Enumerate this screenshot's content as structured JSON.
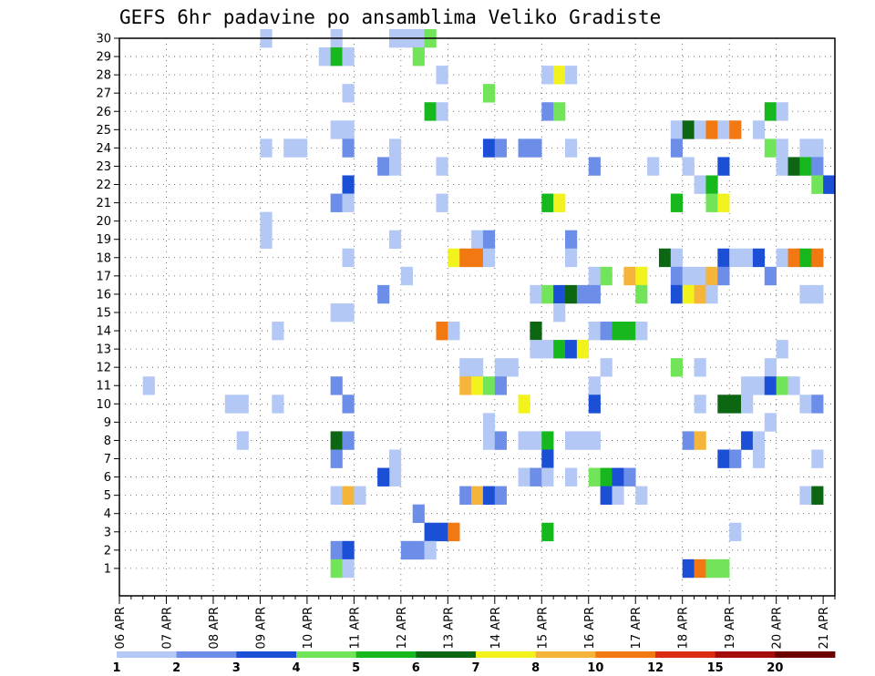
{
  "chart_data": {
    "type": "heatmap",
    "title": "GEFS 6hr padavine po ansamblima Veliko Gradiste",
    "xlabel": "",
    "ylabel": "",
    "x_tick_labels": [
      "06 APR",
      "07 APR",
      "08 APR",
      "09 APR",
      "10 APR",
      "11 APR",
      "12 APR",
      "13 APR",
      "14 APR",
      "15 APR",
      "16 APR",
      "17 APR",
      "18 APR",
      "19 APR",
      "20 APR",
      "21 APR"
    ],
    "x_steps": 61,
    "x_steps_per_day": 4,
    "y_tick_labels": [
      "1",
      "2",
      "3",
      "4",
      "5",
      "6",
      "7",
      "8",
      "9",
      "10",
      "11",
      "12",
      "13",
      "14",
      "15",
      "16",
      "17",
      "18",
      "19",
      "20",
      "21",
      "22",
      "23",
      "24",
      "25",
      "26",
      "27",
      "28",
      "29",
      "30"
    ],
    "ylim": [
      0,
      30
    ],
    "grid": true,
    "legend_position": "bottom",
    "legend_labels": [
      "1",
      "2",
      "3",
      "4",
      "5",
      "6",
      "7",
      "8",
      "10",
      "12",
      "15",
      "20"
    ],
    "legend_colors": [
      "#b4c8f5",
      "#6c8ee8",
      "#1a4fd6",
      "#72e45a",
      "#16b81e",
      "#0c6612",
      "#f2f21c",
      "#f5b43a",
      "#f27812",
      "#dc2c10",
      "#a50c0c",
      "#6c0000"
    ],
    "cells": [
      {
        "x": 12,
        "y": 30,
        "v": 1
      },
      {
        "x": 18,
        "y": 30,
        "v": 1
      },
      {
        "x": 23,
        "y": 30,
        "v": 1
      },
      {
        "x": 24,
        "y": 30,
        "v": 1
      },
      {
        "x": 25,
        "y": 30,
        "v": 1
      },
      {
        "x": 26,
        "y": 30,
        "v": 4
      },
      {
        "x": 17,
        "y": 29,
        "v": 1
      },
      {
        "x": 18,
        "y": 29,
        "v": 5
      },
      {
        "x": 19,
        "y": 29,
        "v": 1
      },
      {
        "x": 25,
        "y": 29,
        "v": 4
      },
      {
        "x": 27,
        "y": 28,
        "v": 1
      },
      {
        "x": 36,
        "y": 28,
        "v": 1
      },
      {
        "x": 37,
        "y": 28,
        "v": 7
      },
      {
        "x": 38,
        "y": 28,
        "v": 1
      },
      {
        "x": 19,
        "y": 27,
        "v": 1
      },
      {
        "x": 31,
        "y": 27,
        "v": 4
      },
      {
        "x": 26,
        "y": 26,
        "v": 5
      },
      {
        "x": 27,
        "y": 26,
        "v": 1
      },
      {
        "x": 36,
        "y": 26,
        "v": 2
      },
      {
        "x": 37,
        "y": 26,
        "v": 4
      },
      {
        "x": 55,
        "y": 26,
        "v": 5
      },
      {
        "x": 56,
        "y": 26,
        "v": 1
      },
      {
        "x": 18,
        "y": 25,
        "v": 1
      },
      {
        "x": 19,
        "y": 25,
        "v": 1
      },
      {
        "x": 47,
        "y": 25,
        "v": 1
      },
      {
        "x": 48,
        "y": 25,
        "v": 6
      },
      {
        "x": 49,
        "y": 25,
        "v": 1
      },
      {
        "x": 50,
        "y": 25,
        "v": 11
      },
      {
        "x": 51,
        "y": 25,
        "v": 1
      },
      {
        "x": 52,
        "y": 25,
        "v": 11
      },
      {
        "x": 54,
        "y": 25,
        "v": 1
      },
      {
        "x": 12,
        "y": 24,
        "v": 1
      },
      {
        "x": 14,
        "y": 24,
        "v": 1
      },
      {
        "x": 15,
        "y": 24,
        "v": 1
      },
      {
        "x": 19,
        "y": 24,
        "v": 2
      },
      {
        "x": 23,
        "y": 24,
        "v": 1
      },
      {
        "x": 31,
        "y": 24,
        "v": 3
      },
      {
        "x": 32,
        "y": 24,
        "v": 2
      },
      {
        "x": 34,
        "y": 24,
        "v": 2
      },
      {
        "x": 35,
        "y": 24,
        "v": 2
      },
      {
        "x": 38,
        "y": 24,
        "v": 1
      },
      {
        "x": 47,
        "y": 24,
        "v": 2
      },
      {
        "x": 55,
        "y": 24,
        "v": 4
      },
      {
        "x": 56,
        "y": 24,
        "v": 1
      },
      {
        "x": 58,
        "y": 24,
        "v": 1
      },
      {
        "x": 59,
        "y": 24,
        "v": 1
      },
      {
        "x": 22,
        "y": 23,
        "v": 2
      },
      {
        "x": 23,
        "y": 23,
        "v": 1
      },
      {
        "x": 27,
        "y": 23,
        "v": 1
      },
      {
        "x": 40,
        "y": 23,
        "v": 2
      },
      {
        "x": 45,
        "y": 23,
        "v": 1
      },
      {
        "x": 48,
        "y": 23,
        "v": 1
      },
      {
        "x": 51,
        "y": 23,
        "v": 3
      },
      {
        "x": 56,
        "y": 23,
        "v": 1
      },
      {
        "x": 57,
        "y": 23,
        "v": 6
      },
      {
        "x": 58,
        "y": 23,
        "v": 5
      },
      {
        "x": 59,
        "y": 23,
        "v": 2
      },
      {
        "x": 19,
        "y": 22,
        "v": 3
      },
      {
        "x": 49,
        "y": 22,
        "v": 1
      },
      {
        "x": 50,
        "y": 22,
        "v": 5
      },
      {
        "x": 59,
        "y": 22,
        "v": 4
      },
      {
        "x": 60,
        "y": 22,
        "v": 3
      },
      {
        "x": 18,
        "y": 21,
        "v": 2
      },
      {
        "x": 19,
        "y": 21,
        "v": 1
      },
      {
        "x": 27,
        "y": 21,
        "v": 1
      },
      {
        "x": 36,
        "y": 21,
        "v": 5
      },
      {
        "x": 37,
        "y": 21,
        "v": 7
      },
      {
        "x": 47,
        "y": 21,
        "v": 5
      },
      {
        "x": 50,
        "y": 21,
        "v": 4
      },
      {
        "x": 51,
        "y": 21,
        "v": 7
      },
      {
        "x": 12,
        "y": 20,
        "v": 1
      },
      {
        "x": 12,
        "y": 19,
        "v": 1
      },
      {
        "x": 23,
        "y": 19,
        "v": 1
      },
      {
        "x": 30,
        "y": 19,
        "v": 1
      },
      {
        "x": 31,
        "y": 19,
        "v": 2
      },
      {
        "x": 38,
        "y": 19,
        "v": 2
      },
      {
        "x": 19,
        "y": 18,
        "v": 1
      },
      {
        "x": 28,
        "y": 18,
        "v": 7
      },
      {
        "x": 29,
        "y": 18,
        "v": 10
      },
      {
        "x": 30,
        "y": 18,
        "v": 10
      },
      {
        "x": 31,
        "y": 18,
        "v": 1
      },
      {
        "x": 38,
        "y": 18,
        "v": 1
      },
      {
        "x": 46,
        "y": 18,
        "v": 6
      },
      {
        "x": 47,
        "y": 18,
        "v": 1
      },
      {
        "x": 51,
        "y": 18,
        "v": 3
      },
      {
        "x": 52,
        "y": 18,
        "v": 1
      },
      {
        "x": 53,
        "y": 18,
        "v": 1
      },
      {
        "x": 54,
        "y": 18,
        "v": 3
      },
      {
        "x": 56,
        "y": 18,
        "v": 1
      },
      {
        "x": 57,
        "y": 18,
        "v": 11
      },
      {
        "x": 58,
        "y": 18,
        "v": 5
      },
      {
        "x": 59,
        "y": 18,
        "v": 10
      },
      {
        "x": 24,
        "y": 17,
        "v": 1
      },
      {
        "x": 40,
        "y": 17,
        "v": 1
      },
      {
        "x": 41,
        "y": 17,
        "v": 4
      },
      {
        "x": 43,
        "y": 17,
        "v": 8
      },
      {
        "x": 44,
        "y": 17,
        "v": 7
      },
      {
        "x": 47,
        "y": 17,
        "v": 2
      },
      {
        "x": 48,
        "y": 17,
        "v": 1
      },
      {
        "x": 49,
        "y": 17,
        "v": 1
      },
      {
        "x": 50,
        "y": 17,
        "v": 8
      },
      {
        "x": 51,
        "y": 17,
        "v": 2
      },
      {
        "x": 55,
        "y": 17,
        "v": 2
      },
      {
        "x": 22,
        "y": 16,
        "v": 2
      },
      {
        "x": 35,
        "y": 16,
        "v": 1
      },
      {
        "x": 36,
        "y": 16,
        "v": 4
      },
      {
        "x": 37,
        "y": 16,
        "v": 3
      },
      {
        "x": 38,
        "y": 16,
        "v": 6
      },
      {
        "x": 39,
        "y": 16,
        "v": 2
      },
      {
        "x": 40,
        "y": 16,
        "v": 2
      },
      {
        "x": 44,
        "y": 16,
        "v": 4
      },
      {
        "x": 47,
        "y": 16,
        "v": 3
      },
      {
        "x": 48,
        "y": 16,
        "v": 7
      },
      {
        "x": 49,
        "y": 16,
        "v": 8
      },
      {
        "x": 50,
        "y": 16,
        "v": 1
      },
      {
        "x": 58,
        "y": 16,
        "v": 1
      },
      {
        "x": 59,
        "y": 16,
        "v": 1
      },
      {
        "x": 18,
        "y": 15,
        "v": 1
      },
      {
        "x": 19,
        "y": 15,
        "v": 1
      },
      {
        "x": 37,
        "y": 15,
        "v": 1
      },
      {
        "x": 13,
        "y": 14,
        "v": 1
      },
      {
        "x": 27,
        "y": 14,
        "v": 10
      },
      {
        "x": 28,
        "y": 14,
        "v": 1
      },
      {
        "x": 35,
        "y": 14,
        "v": 6
      },
      {
        "x": 40,
        "y": 14,
        "v": 1
      },
      {
        "x": 41,
        "y": 14,
        "v": 2
      },
      {
        "x": 42,
        "y": 14,
        "v": 5
      },
      {
        "x": 43,
        "y": 14,
        "v": 5
      },
      {
        "x": 44,
        "y": 14,
        "v": 1
      },
      {
        "x": 35,
        "y": 13,
        "v": 1
      },
      {
        "x": 36,
        "y": 13,
        "v": 1
      },
      {
        "x": 37,
        "y": 13,
        "v": 5
      },
      {
        "x": 38,
        "y": 13,
        "v": 3
      },
      {
        "x": 39,
        "y": 13,
        "v": 7
      },
      {
        "x": 56,
        "y": 13,
        "v": 1
      },
      {
        "x": 29,
        "y": 12,
        "v": 1
      },
      {
        "x": 30,
        "y": 12,
        "v": 1
      },
      {
        "x": 32,
        "y": 12,
        "v": 1
      },
      {
        "x": 33,
        "y": 12,
        "v": 1
      },
      {
        "x": 41,
        "y": 12,
        "v": 1
      },
      {
        "x": 47,
        "y": 12,
        "v": 4
      },
      {
        "x": 49,
        "y": 12,
        "v": 1
      },
      {
        "x": 55,
        "y": 12,
        "v": 1
      },
      {
        "x": 2,
        "y": 11,
        "v": 1
      },
      {
        "x": 18,
        "y": 11,
        "v": 2
      },
      {
        "x": 29,
        "y": 11,
        "v": 8
      },
      {
        "x": 30,
        "y": 11,
        "v": 7
      },
      {
        "x": 31,
        "y": 11,
        "v": 4
      },
      {
        "x": 32,
        "y": 11,
        "v": 2
      },
      {
        "x": 40,
        "y": 11,
        "v": 1
      },
      {
        "x": 53,
        "y": 11,
        "v": 1
      },
      {
        "x": 54,
        "y": 11,
        "v": 1
      },
      {
        "x": 55,
        "y": 11,
        "v": 3
      },
      {
        "x": 56,
        "y": 11,
        "v": 4
      },
      {
        "x": 57,
        "y": 11,
        "v": 1
      },
      {
        "x": 9,
        "y": 10,
        "v": 1
      },
      {
        "x": 10,
        "y": 10,
        "v": 1
      },
      {
        "x": 13,
        "y": 10,
        "v": 1
      },
      {
        "x": 19,
        "y": 10,
        "v": 2
      },
      {
        "x": 34,
        "y": 10,
        "v": 7
      },
      {
        "x": 40,
        "y": 10,
        "v": 3
      },
      {
        "x": 49,
        "y": 10,
        "v": 1
      },
      {
        "x": 51,
        "y": 10,
        "v": 6
      },
      {
        "x": 52,
        "y": 10,
        "v": 6
      },
      {
        "x": 53,
        "y": 10,
        "v": 1
      },
      {
        "x": 58,
        "y": 10,
        "v": 1
      },
      {
        "x": 59,
        "y": 10,
        "v": 2
      },
      {
        "x": 31,
        "y": 9,
        "v": 1
      },
      {
        "x": 55,
        "y": 9,
        "v": 1
      },
      {
        "x": 10,
        "y": 8,
        "v": 1
      },
      {
        "x": 18,
        "y": 8,
        "v": 6
      },
      {
        "x": 19,
        "y": 8,
        "v": 2
      },
      {
        "x": 31,
        "y": 8,
        "v": 1
      },
      {
        "x": 32,
        "y": 8,
        "v": 2
      },
      {
        "x": 34,
        "y": 8,
        "v": 1
      },
      {
        "x": 35,
        "y": 8,
        "v": 1
      },
      {
        "x": 36,
        "y": 8,
        "v": 5
      },
      {
        "x": 38,
        "y": 8,
        "v": 1
      },
      {
        "x": 39,
        "y": 8,
        "v": 1
      },
      {
        "x": 40,
        "y": 8,
        "v": 1
      },
      {
        "x": 48,
        "y": 8,
        "v": 2
      },
      {
        "x": 49,
        "y": 8,
        "v": 9
      },
      {
        "x": 53,
        "y": 8,
        "v": 3
      },
      {
        "x": 54,
        "y": 8,
        "v": 1
      },
      {
        "x": 18,
        "y": 7,
        "v": 2
      },
      {
        "x": 23,
        "y": 7,
        "v": 1
      },
      {
        "x": 36,
        "y": 7,
        "v": 3
      },
      {
        "x": 51,
        "y": 7,
        "v": 3
      },
      {
        "x": 52,
        "y": 7,
        "v": 2
      },
      {
        "x": 54,
        "y": 7,
        "v": 1
      },
      {
        "x": 59,
        "y": 7,
        "v": 1
      },
      {
        "x": 23,
        "y": 6,
        "v": 1
      },
      {
        "x": 22,
        "y": 6,
        "v": 3
      },
      {
        "x": 34,
        "y": 6,
        "v": 1
      },
      {
        "x": 35,
        "y": 6,
        "v": 2
      },
      {
        "x": 36,
        "y": 6,
        "v": 1
      },
      {
        "x": 38,
        "y": 6,
        "v": 1
      },
      {
        "x": 40,
        "y": 6,
        "v": 4
      },
      {
        "x": 41,
        "y": 6,
        "v": 5
      },
      {
        "x": 42,
        "y": 6,
        "v": 3
      },
      {
        "x": 43,
        "y": 6,
        "v": 2
      },
      {
        "x": 18,
        "y": 5,
        "v": 1
      },
      {
        "x": 19,
        "y": 5,
        "v": 9
      },
      {
        "x": 20,
        "y": 5,
        "v": 1
      },
      {
        "x": 29,
        "y": 5,
        "v": 2
      },
      {
        "x": 30,
        "y": 5,
        "v": 9
      },
      {
        "x": 31,
        "y": 5,
        "v": 3
      },
      {
        "x": 32,
        "y": 5,
        "v": 2
      },
      {
        "x": 41,
        "y": 5,
        "v": 3
      },
      {
        "x": 42,
        "y": 5,
        "v": 1
      },
      {
        "x": 44,
        "y": 5,
        "v": 1
      },
      {
        "x": 58,
        "y": 5,
        "v": 1
      },
      {
        "x": 59,
        "y": 5,
        "v": 6
      },
      {
        "x": 25,
        "y": 4,
        "v": 2
      },
      {
        "x": 26,
        "y": 3,
        "v": 3
      },
      {
        "x": 27,
        "y": 3,
        "v": 3
      },
      {
        "x": 28,
        "y": 3,
        "v": 10
      },
      {
        "x": 36,
        "y": 3,
        "v": 5
      },
      {
        "x": 52,
        "y": 3,
        "v": 1
      },
      {
        "x": 18,
        "y": 2,
        "v": 2
      },
      {
        "x": 19,
        "y": 2,
        "v": 3
      },
      {
        "x": 24,
        "y": 2,
        "v": 2
      },
      {
        "x": 25,
        "y": 2,
        "v": 2
      },
      {
        "x": 26,
        "y": 2,
        "v": 1
      },
      {
        "x": 18,
        "y": 1,
        "v": 4
      },
      {
        "x": 19,
        "y": 1,
        "v": 1
      },
      {
        "x": 48,
        "y": 1,
        "v": 3
      },
      {
        "x": 49,
        "y": 1,
        "v": 11
      },
      {
        "x": 50,
        "y": 1,
        "v": 4
      },
      {
        "x": 51,
        "y": 1,
        "v": 4
      }
    ]
  }
}
